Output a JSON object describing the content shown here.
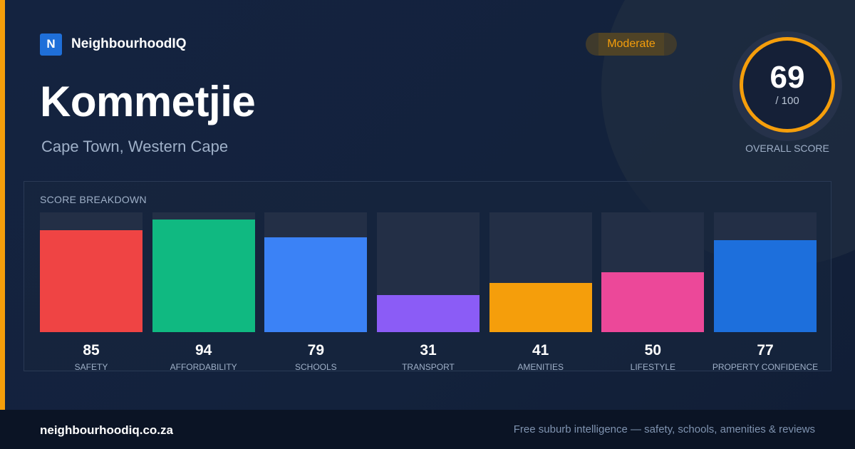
{
  "brand": {
    "logo_letter": "N",
    "name": "NeighbourhoodIQ"
  },
  "suburb": {
    "name": "Kommetjie",
    "location": "Cape Town, Western Cape"
  },
  "rating": {
    "label": "Moderate"
  },
  "overall": {
    "score": "69",
    "max": "/ 100",
    "label": "OVERALL SCORE",
    "ring_color": "#f59e0b"
  },
  "breakdown": {
    "title": "SCORE BREAKDOWN"
  },
  "chart_data": {
    "type": "bar",
    "title": "SCORE BREAKDOWN",
    "ylim": [
      0,
      100
    ],
    "categories": [
      "SAFETY",
      "AFFORDABILITY",
      "SCHOOLS",
      "TRANSPORT",
      "AMENITIES",
      "LIFESTYLE",
      "PROPERTY CONFIDENCE"
    ],
    "values": [
      85,
      94,
      79,
      31,
      41,
      50,
      77
    ],
    "colors": [
      "#ef4444",
      "#10b981",
      "#3b82f6",
      "#8b5cf6",
      "#f59e0b",
      "#ec4899",
      "#1d6fdc"
    ]
  },
  "footer": {
    "url": "neighbourhoodiq.co.za",
    "tagline": "Free suburb intelligence — safety, schools, amenities & reviews"
  }
}
